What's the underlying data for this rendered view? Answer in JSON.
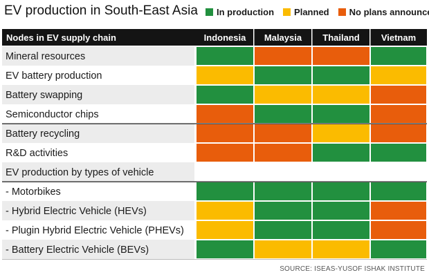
{
  "title": "EV production in South-East Asia",
  "source": "SOURCE: ISEAS-YUSOF ISHAK INSTITUTE",
  "colors": {
    "in_production": "#22903f",
    "planned": "#fbbb00",
    "no_plans": "#e85d0c",
    "header_bg": "#141414",
    "zebra": "#ececec"
  },
  "legend": [
    {
      "key": "in_production",
      "label": "In production"
    },
    {
      "key": "planned",
      "label": "Planned"
    },
    {
      "key": "no_plans",
      "label": "No plans announced"
    }
  ],
  "chart_data": {
    "type": "table",
    "header": "Nodes in EV supply chain",
    "columns": [
      "Indonesia",
      "Malaysia",
      "Thailand",
      "Vietnam"
    ],
    "rows": [
      {
        "label": "Mineral resources",
        "values": [
          "in_production",
          "no_plans",
          "no_plans",
          "in_production"
        ]
      },
      {
        "label": "EV battery production",
        "values": [
          "planned",
          "in_production",
          "in_production",
          "planned"
        ]
      },
      {
        "label": "Battery swapping",
        "values": [
          "in_production",
          "planned",
          "planned",
          "no_plans"
        ]
      },
      {
        "label": "Semiconductor chips",
        "values": [
          "no_plans",
          "in_production",
          "in_production",
          "no_plans"
        ]
      },
      {
        "label": "Battery recycling",
        "values": [
          "no_plans",
          "no_plans",
          "planned",
          "no_plans"
        ]
      },
      {
        "label": "R&D activities",
        "values": [
          "no_plans",
          "no_plans",
          "in_production",
          "in_production"
        ]
      },
      {
        "label": "EV production by types of vehicle",
        "values": null
      },
      {
        "label": " - Motorbikes",
        "values": [
          "in_production",
          "in_production",
          "in_production",
          "in_production"
        ]
      },
      {
        "label": " - Hybrid Electric Vehicle (HEVs)",
        "values": [
          "planned",
          "in_production",
          "in_production",
          "no_plans"
        ]
      },
      {
        "label": " - Plugin Hybrid Electric Vehicle (PHEVs)",
        "values": [
          "planned",
          "in_production",
          "in_production",
          "no_plans"
        ]
      },
      {
        "label": " - Battery Electric Vehicle (BEVs)",
        "values": [
          "in_production",
          "planned",
          "planned",
          "in_production"
        ]
      }
    ]
  }
}
